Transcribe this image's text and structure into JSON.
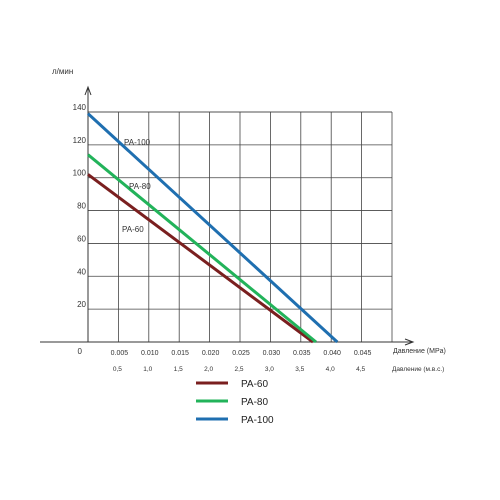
{
  "chart_data": {
    "type": "line",
    "ylabel": "л/мин",
    "xlabel": "Давление (MPa)",
    "xlabel2": "Давление (м.в.с.)",
    "xlim": [
      0,
      0.05
    ],
    "ylim": [
      0,
      140
    ],
    "grid": true,
    "y_ticks": [
      0,
      20,
      40,
      60,
      80,
      100,
      120,
      140
    ],
    "y_tick_labels": [
      "0",
      "20",
      "40",
      "60",
      "80",
      "100",
      "120",
      "140"
    ],
    "x_ticks": [
      0.005,
      0.01,
      0.015,
      0.02,
      0.025,
      0.03,
      0.035,
      0.04,
      0.045
    ],
    "x_tick_labels": [
      "0.005",
      "0.010",
      "0.015",
      "0.020",
      "0.025",
      "0.030",
      "0.035",
      "0.040",
      "0.045"
    ],
    "x2_ticks": [
      0.5,
      1.0,
      1.5,
      2.0,
      2.5,
      3.0,
      3.5,
      4.0,
      4.5
    ],
    "x2_tick_labels": [
      "0,5",
      "1,0",
      "1,5",
      "2,0",
      "2,5",
      "3,0",
      "3,5",
      "4,0",
      "4,5"
    ],
    "series": [
      {
        "name": "PA-60",
        "color": "#7a1f1f",
        "x": [
          0,
          0.037
        ],
        "y": [
          102,
          0
        ]
      },
      {
        "name": "PA-80",
        "color": "#22b35a",
        "x": [
          0,
          0.0375
        ],
        "y": [
          114,
          0
        ]
      },
      {
        "name": "PA-100",
        "color": "#1f6fb0",
        "x": [
          0,
          0.041
        ],
        "y": [
          139,
          0
        ]
      }
    ],
    "legend": "bottom"
  }
}
